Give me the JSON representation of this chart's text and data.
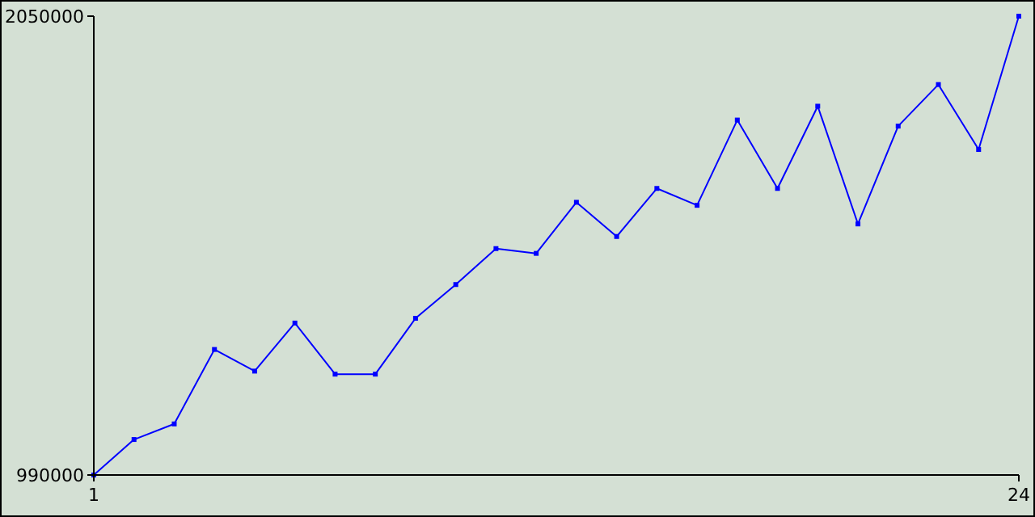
{
  "chart_data": {
    "type": "line",
    "x": [
      1,
      2,
      3,
      4,
      5,
      6,
      7,
      8,
      9,
      10,
      11,
      12,
      13,
      14,
      15,
      16,
      17,
      18,
      19,
      20,
      21,
      22,
      23,
      24
    ],
    "series": [
      {
        "color": "#0000ff",
        "values": [
          990000,
          1072000,
          1108000,
          1280000,
          1230000,
          1341000,
          1223000,
          1223000,
          1352000,
          1430000,
          1513000,
          1502000,
          1620000,
          1541000,
          1652000,
          1613000,
          1810000,
          1652000,
          1842000,
          1570000,
          1796000,
          1892000,
          1742000,
          2050000
        ]
      }
    ],
    "xlim": [
      1,
      24
    ],
    "xticks": [
      1,
      24
    ],
    "ylim": [
      990000,
      2050000
    ],
    "yticks": [
      990000,
      2050000
    ],
    "marker": "square",
    "line_style": "solid"
  }
}
